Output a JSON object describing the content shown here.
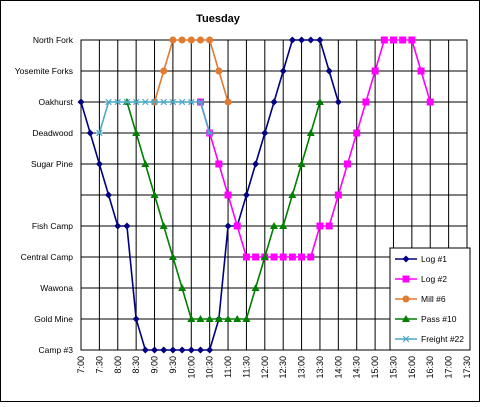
{
  "chart_data": {
    "type": "line",
    "title": "Tuesday",
    "xlabel": "",
    "ylabel": "",
    "x_ticks": [
      "7:00",
      "7:30",
      "8:00",
      "8:30",
      "9:00",
      "9:30",
      "10:00",
      "10:30",
      "11:00",
      "11:30",
      "12:00",
      "12:30",
      "13:00",
      "13:30",
      "14:00",
      "14:30",
      "15:00",
      "15:30",
      "16:00",
      "16:30",
      "17:00",
      "17:30"
    ],
    "x_range": [
      "7:00",
      "17:30"
    ],
    "y_categories": [
      {
        "label": "North Fork",
        "y": 10
      },
      {
        "label": "Yosemite Forks",
        "y": 9
      },
      {
        "label": "Oakhurst",
        "y": 8
      },
      {
        "label": "Deadwood",
        "y": 7
      },
      {
        "label": "Sugar Pine",
        "y": 6
      },
      {
        "label": "",
        "y": 5
      },
      {
        "label": "Fish Camp",
        "y": 4
      },
      {
        "label": "Central Camp",
        "y": 3
      },
      {
        "label": "Wawona",
        "y": 2
      },
      {
        "label": "Gold Mine",
        "y": 1
      },
      {
        "label": "Camp #3",
        "y": 0
      }
    ],
    "y_range": [
      0,
      10
    ],
    "grid": true,
    "legend_position": "bottom-right",
    "series": [
      {
        "name": "Log #1",
        "color": "#000080",
        "marker": "diamond",
        "points": [
          [
            "7:00",
            8
          ],
          [
            "7:15",
            7
          ],
          [
            "7:30",
            6
          ],
          [
            "7:45",
            5
          ],
          [
            "8:00",
            4
          ],
          [
            "8:15",
            4
          ],
          [
            "8:30",
            1
          ],
          [
            "8:45",
            0
          ],
          [
            "9:00",
            0
          ],
          [
            "9:15",
            0
          ],
          [
            "9:30",
            0
          ],
          [
            "9:45",
            0
          ],
          [
            "10:00",
            0
          ],
          [
            "10:15",
            0
          ],
          [
            "10:30",
            0
          ],
          [
            "10:45",
            1
          ],
          [
            "11:00",
            4
          ],
          [
            "11:15",
            4
          ],
          [
            "11:30",
            5
          ],
          [
            "11:45",
            6
          ],
          [
            "12:00",
            7
          ],
          [
            "12:15",
            8
          ],
          [
            "12:30",
            9
          ],
          [
            "12:45",
            10
          ],
          [
            "13:00",
            10
          ],
          [
            "13:15",
            10
          ],
          [
            "13:30",
            10
          ],
          [
            "13:45",
            9
          ],
          [
            "14:00",
            8
          ]
        ]
      },
      {
        "name": "Log #2",
        "color": "#FF00FF",
        "marker": "square",
        "points": [
          [
            "10:15",
            8
          ],
          [
            "10:30",
            7
          ],
          [
            "10:45",
            6
          ],
          [
            "11:00",
            5
          ],
          [
            "11:15",
            4
          ],
          [
            "11:30",
            3
          ],
          [
            "11:45",
            3
          ],
          [
            "12:00",
            3
          ],
          [
            "12:15",
            3
          ],
          [
            "12:30",
            3
          ],
          [
            "12:45",
            3
          ],
          [
            "13:00",
            3
          ],
          [
            "13:15",
            3
          ],
          [
            "13:30",
            4
          ],
          [
            "13:45",
            4
          ],
          [
            "14:00",
            5
          ],
          [
            "14:15",
            6
          ],
          [
            "14:30",
            7
          ],
          [
            "14:45",
            8
          ],
          [
            "15:00",
            9
          ],
          [
            "15:15",
            10
          ],
          [
            "15:30",
            10
          ],
          [
            "15:45",
            10
          ],
          [
            "16:00",
            10
          ],
          [
            "16:15",
            9
          ],
          [
            "16:30",
            8
          ]
        ]
      },
      {
        "name": "Mill #6",
        "color": "#E07B30",
        "marker": "circle",
        "points": [
          [
            "9:00",
            8
          ],
          [
            "9:15",
            9
          ],
          [
            "9:30",
            10
          ],
          [
            "9:45",
            10
          ],
          [
            "10:00",
            10
          ],
          [
            "10:15",
            10
          ],
          [
            "10:30",
            10
          ],
          [
            "10:45",
            9
          ],
          [
            "11:00",
            8
          ]
        ]
      },
      {
        "name": "Pass #10",
        "color": "#007F00",
        "marker": "triangle",
        "points": [
          [
            "8:15",
            8
          ],
          [
            "8:30",
            7
          ],
          [
            "8:45",
            6
          ],
          [
            "9:00",
            5
          ],
          [
            "9:15",
            4
          ],
          [
            "9:30",
            3
          ],
          [
            "9:45",
            2
          ],
          [
            "10:00",
            1
          ],
          [
            "10:15",
            1
          ],
          [
            "10:30",
            1
          ],
          [
            "10:45",
            1
          ],
          [
            "11:00",
            1
          ],
          [
            "11:15",
            1
          ],
          [
            "11:30",
            1
          ],
          [
            "11:45",
            2
          ],
          [
            "12:00",
            3
          ],
          [
            "12:15",
            4
          ],
          [
            "12:30",
            4
          ],
          [
            "12:45",
            5
          ],
          [
            "13:00",
            6
          ],
          [
            "13:15",
            7
          ],
          [
            "13:30",
            8
          ]
        ]
      },
      {
        "name": "Freight #22",
        "color": "#4FA8C8",
        "marker": "star",
        "points": [
          [
            "7:30",
            7
          ],
          [
            "7:45",
            8
          ],
          [
            "8:00",
            8
          ],
          [
            "8:15",
            8
          ],
          [
            "8:30",
            8
          ],
          [
            "8:45",
            8
          ],
          [
            "9:00",
            8
          ],
          [
            "9:15",
            8
          ],
          [
            "9:30",
            8
          ],
          [
            "9:45",
            8
          ],
          [
            "10:00",
            8
          ],
          [
            "10:15",
            8
          ],
          [
            "10:30",
            7
          ]
        ]
      }
    ]
  }
}
